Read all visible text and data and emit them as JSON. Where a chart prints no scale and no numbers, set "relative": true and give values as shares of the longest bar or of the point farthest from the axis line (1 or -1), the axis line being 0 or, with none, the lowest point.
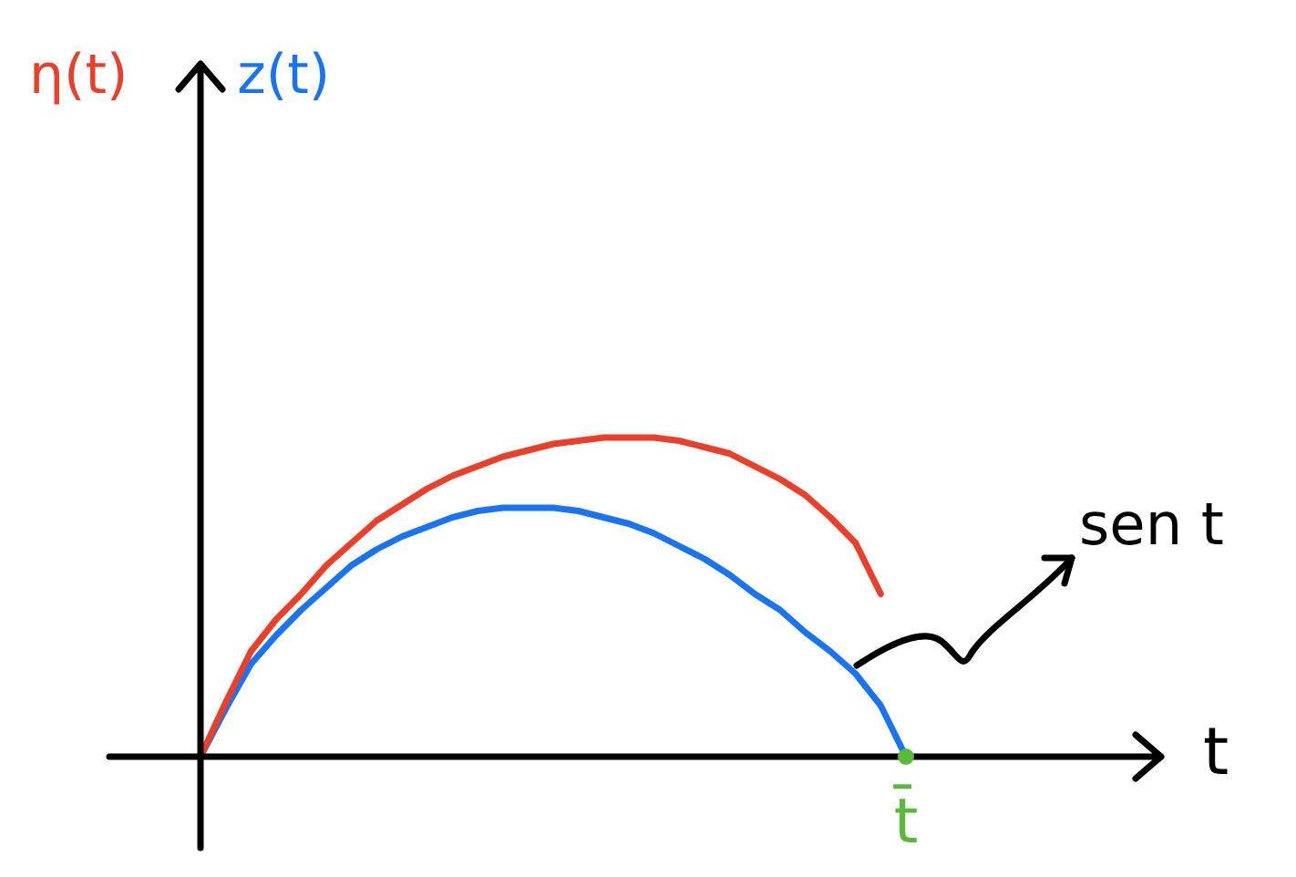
{
  "chart_data": {
    "type": "line",
    "relative": true,
    "xlabel": "t",
    "categories": [
      null,
      null,
      null,
      null,
      null,
      null,
      null,
      null,
      null,
      null,
      null,
      null,
      null,
      null,
      null,
      null,
      null,
      null,
      null,
      null,
      null,
      null,
      null,
      null,
      null,
      null,
      null,
      null,
      null
    ],
    "series": [
      {
        "name": "η(t)",
        "color": "#e8402a",
        "values": [
          0,
          0.17,
          0.33,
          0.43,
          0.51,
          0.6,
          0.67,
          0.74,
          0.79,
          0.84,
          0.88,
          0.91,
          0.94,
          0.96,
          0.98,
          0.99,
          1,
          1,
          1,
          0.99,
          0.97,
          0.95,
          0.91,
          0.87,
          0.82,
          0.75,
          0.67,
          0.51,
          null
        ]
      },
      {
        "name": "z(t)",
        "color": "#1a73f0",
        "values": [
          0,
          0.15,
          0.29,
          0.38,
          0.46,
          0.53,
          0.6,
          0.65,
          0.69,
          0.72,
          0.75,
          0.77,
          0.78,
          0.78,
          0.78,
          0.77,
          0.75,
          0.73,
          0.7,
          0.66,
          0.62,
          0.57,
          0.51,
          0.46,
          0.39,
          0.33,
          0.26,
          0.16,
          0
        ]
      }
    ],
    "annotations": [
      "t̄",
      "sen t"
    ],
    "marker": "none",
    "legend": "top left"
  }
}
